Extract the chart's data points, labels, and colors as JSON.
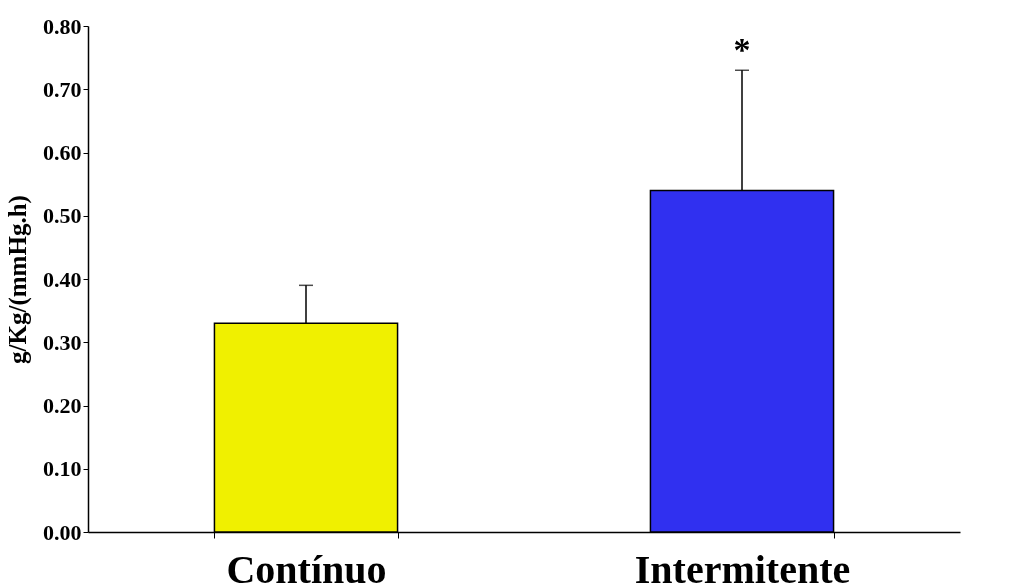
{
  "chart_data": {
    "type": "bar",
    "ylabel": "g/Kg/(mmHg.h)",
    "categories": [
      "Contínuo",
      "Intermitente"
    ],
    "values": [
      0.33,
      0.54
    ],
    "colors": [
      "#f0f000",
      "#3030f0"
    ],
    "errors": [
      [
        0.33,
        0.39
      ],
      [
        0.54,
        0.73
      ]
    ],
    "ylim": [
      0,
      0.8
    ],
    "yticks": [
      {
        "value": 0,
        "label": "0.00"
      },
      {
        "value": 0.1,
        "label": "0.10"
      },
      {
        "value": 0.2,
        "label": "0.20"
      },
      {
        "value": 0.3,
        "label": "0.30"
      },
      {
        "value": 0.4,
        "label": "0.40"
      },
      {
        "value": 0.5,
        "label": "0.50"
      },
      {
        "value": 0.6,
        "label": "0.60"
      },
      {
        "value": 0.7,
        "label": "0.70"
      },
      {
        "value": 0.8,
        "label": "0.80"
      }
    ],
    "annotations": [
      "*"
    ],
    "grid": false
  }
}
